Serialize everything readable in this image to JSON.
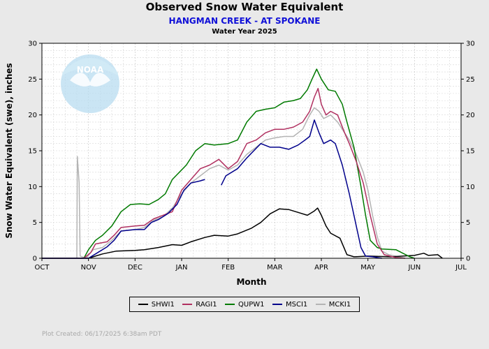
{
  "header": {
    "title": "Observed Snow Water Equivalent",
    "subtitle": "HANGMAN CREEK - AT SPOKANE",
    "subsubtitle": "Water Year 2025"
  },
  "footer": {
    "plot_created": "Plot Created: 06/17/2025 6:38am PDT"
  },
  "logo": {
    "text": "NOAA"
  },
  "colors": {
    "SHWI1": "#000000",
    "RAGI1": "#b03060",
    "QUPW1": "#007a00",
    "MSCI1": "#00008b",
    "MCKI1": "#b4b4b4",
    "background": "#e9e9e9",
    "plot_area": "#ffffff"
  },
  "chart_data": {
    "type": "line",
    "title": "Observed Snow Water Equivalent",
    "xlabel": "Month",
    "ylabel": "Snow Water Equivalent (swe),  inches",
    "categories": [
      "OCT",
      "NOV",
      "DEC",
      "JAN",
      "FEB",
      "MAR",
      "APR",
      "MAY",
      "JUN",
      "JUL"
    ],
    "x_unit": "month index (0 = Oct 1)",
    "ylim": [
      0,
      30
    ],
    "yticks": [
      0,
      5,
      10,
      15,
      20,
      25,
      30
    ],
    "grid": true,
    "legend_position": "bottom",
    "series": [
      {
        "name": "SHWI1",
        "points": [
          [
            0,
            0
          ],
          [
            1.0,
            0
          ],
          [
            1.15,
            0.3
          ],
          [
            1.3,
            0.6
          ],
          [
            1.6,
            1.0
          ],
          [
            2.0,
            1.1
          ],
          [
            2.2,
            1.2
          ],
          [
            2.5,
            1.5
          ],
          [
            2.8,
            1.9
          ],
          [
            3.0,
            1.8
          ],
          [
            3.2,
            2.3
          ],
          [
            3.5,
            2.9
          ],
          [
            3.7,
            3.2
          ],
          [
            4.0,
            3.1
          ],
          [
            4.2,
            3.4
          ],
          [
            4.5,
            4.2
          ],
          [
            4.7,
            5.0
          ],
          [
            4.9,
            6.2
          ],
          [
            5.1,
            6.9
          ],
          [
            5.3,
            6.8
          ],
          [
            5.5,
            6.4
          ],
          [
            5.7,
            6.0
          ],
          [
            5.85,
            6.6
          ],
          [
            5.92,
            7.0
          ],
          [
            6.0,
            6.0
          ],
          [
            6.1,
            4.5
          ],
          [
            6.2,
            3.5
          ],
          [
            6.4,
            2.8
          ],
          [
            6.55,
            0.5
          ],
          [
            6.7,
            0.2
          ],
          [
            7.0,
            0.3
          ],
          [
            7.5,
            0.2
          ],
          [
            8.0,
            0.4
          ],
          [
            8.2,
            0.7
          ],
          [
            8.3,
            0.4
          ],
          [
            8.5,
            0.5
          ],
          [
            8.6,
            0
          ]
        ]
      },
      {
        "name": "RAGI1",
        "points": [
          [
            0,
            0
          ],
          [
            0.9,
            0
          ],
          [
            1.05,
            0.8
          ],
          [
            1.15,
            2.0
          ],
          [
            1.4,
            2.3
          ],
          [
            1.55,
            3.2
          ],
          [
            1.7,
            4.3
          ],
          [
            2.0,
            4.5
          ],
          [
            2.2,
            4.6
          ],
          [
            2.4,
            5.5
          ],
          [
            2.6,
            6.0
          ],
          [
            2.8,
            6.5
          ],
          [
            3.0,
            9.5
          ],
          [
            3.2,
            11.0
          ],
          [
            3.4,
            12.5
          ],
          [
            3.6,
            13.0
          ],
          [
            3.8,
            13.8
          ],
          [
            4.0,
            12.5
          ],
          [
            4.2,
            13.5
          ],
          [
            4.4,
            16.0
          ],
          [
            4.6,
            16.5
          ],
          [
            4.8,
            17.5
          ],
          [
            5.0,
            18.0
          ],
          [
            5.2,
            18.0
          ],
          [
            5.4,
            18.3
          ],
          [
            5.6,
            19.0
          ],
          [
            5.75,
            20.5
          ],
          [
            5.85,
            22.5
          ],
          [
            5.93,
            23.7
          ],
          [
            6.0,
            21.5
          ],
          [
            6.1,
            20.0
          ],
          [
            6.2,
            20.5
          ],
          [
            6.35,
            20.0
          ],
          [
            6.5,
            17.5
          ],
          [
            6.6,
            16.0
          ],
          [
            6.75,
            13.5
          ],
          [
            6.9,
            10.5
          ],
          [
            7.05,
            6.0
          ],
          [
            7.2,
            2.0
          ],
          [
            7.35,
            0.5
          ],
          [
            7.6,
            0.1
          ],
          [
            7.8,
            0
          ]
        ]
      },
      {
        "name": "QUPW1",
        "points": [
          [
            0,
            0
          ],
          [
            0.9,
            0
          ],
          [
            1.0,
            1.2
          ],
          [
            1.15,
            2.5
          ],
          [
            1.3,
            3.2
          ],
          [
            1.5,
            4.5
          ],
          [
            1.7,
            6.5
          ],
          [
            1.9,
            7.5
          ],
          [
            2.1,
            7.6
          ],
          [
            2.3,
            7.5
          ],
          [
            2.5,
            8.2
          ],
          [
            2.65,
            9.0
          ],
          [
            2.8,
            11.0
          ],
          [
            2.95,
            12.0
          ],
          [
            3.1,
            13.0
          ],
          [
            3.3,
            15.0
          ],
          [
            3.5,
            16.0
          ],
          [
            3.7,
            15.8
          ],
          [
            4.0,
            16.0
          ],
          [
            4.2,
            16.5
          ],
          [
            4.4,
            19.0
          ],
          [
            4.6,
            20.5
          ],
          [
            4.8,
            20.8
          ],
          [
            5.0,
            21.0
          ],
          [
            5.2,
            21.8
          ],
          [
            5.4,
            22.0
          ],
          [
            5.55,
            22.3
          ],
          [
            5.7,
            23.5
          ],
          [
            5.8,
            25.0
          ],
          [
            5.9,
            26.4
          ],
          [
            6.0,
            25.0
          ],
          [
            6.15,
            23.5
          ],
          [
            6.3,
            23.3
          ],
          [
            6.45,
            21.5
          ],
          [
            6.55,
            19.0
          ],
          [
            6.7,
            15.5
          ],
          [
            6.85,
            10.0
          ],
          [
            6.95,
            6.0
          ],
          [
            7.05,
            2.5
          ],
          [
            7.2,
            1.5
          ],
          [
            7.3,
            1.3
          ],
          [
            7.6,
            1.2
          ],
          [
            7.9,
            0.2
          ],
          [
            8.0,
            0
          ]
        ]
      },
      {
        "name": "MSCI1",
        "segments": [
          [
            [
              0,
              0
            ],
            [
              1.0,
              0
            ],
            [
              1.2,
              0.8
            ],
            [
              1.4,
              1.6
            ],
            [
              1.55,
              2.5
            ],
            [
              1.7,
              3.8
            ],
            [
              2.0,
              4.0
            ],
            [
              2.2,
              4.0
            ],
            [
              2.35,
              5.0
            ],
            [
              2.5,
              5.4
            ],
            [
              2.7,
              6.2
            ],
            [
              2.9,
              7.5
            ],
            [
              3.05,
              9.5
            ],
            [
              3.2,
              10.5
            ],
            [
              3.4,
              10.8
            ],
            [
              3.5,
              11.0
            ]
          ],
          [
            [
              3.85,
              10.2
            ],
            [
              3.95,
              11.5
            ],
            [
              4.2,
              12.5
            ],
            [
              4.4,
              14.0
            ],
            [
              4.55,
              15.0
            ],
            [
              4.7,
              16.0
            ],
            [
              4.9,
              15.5
            ],
            [
              5.1,
              15.5
            ],
            [
              5.3,
              15.2
            ],
            [
              5.5,
              15.8
            ],
            [
              5.65,
              16.5
            ],
            [
              5.75,
              17.0
            ],
            [
              5.85,
              19.3
            ],
            [
              5.95,
              17.5
            ],
            [
              6.05,
              16.0
            ],
            [
              6.2,
              16.5
            ],
            [
              6.3,
              16.0
            ],
            [
              6.45,
              13.0
            ],
            [
              6.6,
              9.0
            ],
            [
              6.75,
              4.5
            ],
            [
              6.85,
              1.5
            ],
            [
              6.95,
              0.3
            ],
            [
              7.1,
              0.2
            ],
            [
              7.3,
              0
            ]
          ]
        ]
      },
      {
        "name": "MCKI1",
        "points": [
          [
            0,
            0
          ],
          [
            0.75,
            0
          ],
          [
            0.76,
            14.2
          ],
          [
            0.8,
            10.5
          ],
          [
            0.82,
            0.3
          ],
          [
            0.95,
            0
          ],
          [
            1.1,
            1.2
          ],
          [
            1.3,
            1.5
          ],
          [
            1.5,
            2.5
          ],
          [
            1.7,
            3.8
          ],
          [
            2.0,
            4.0
          ],
          [
            2.2,
            4.3
          ],
          [
            2.4,
            5.3
          ],
          [
            2.6,
            5.8
          ],
          [
            2.8,
            7.0
          ],
          [
            3.0,
            9.0
          ],
          [
            3.2,
            10.5
          ],
          [
            3.4,
            11.5
          ],
          [
            3.6,
            12.5
          ],
          [
            3.8,
            13.0
          ],
          [
            4.0,
            12.3
          ],
          [
            4.2,
            13.0
          ],
          [
            4.4,
            14.5
          ],
          [
            4.6,
            15.5
          ],
          [
            4.8,
            16.5
          ],
          [
            5.0,
            16.8
          ],
          [
            5.2,
            17.0
          ],
          [
            5.4,
            17.0
          ],
          [
            5.6,
            18.0
          ],
          [
            5.75,
            20.0
          ],
          [
            5.85,
            21.0
          ],
          [
            5.95,
            20.5
          ],
          [
            6.05,
            19.5
          ],
          [
            6.2,
            20.0
          ],
          [
            6.35,
            19.0
          ],
          [
            6.5,
            17.5
          ],
          [
            6.6,
            16.5
          ],
          [
            6.75,
            14.5
          ],
          [
            6.9,
            12.0
          ],
          [
            7.0,
            9.5
          ],
          [
            7.1,
            6.0
          ],
          [
            7.2,
            3.0
          ],
          [
            7.3,
            1.0
          ],
          [
            7.45,
            0.5
          ],
          [
            7.8,
            0
          ]
        ]
      }
    ]
  }
}
